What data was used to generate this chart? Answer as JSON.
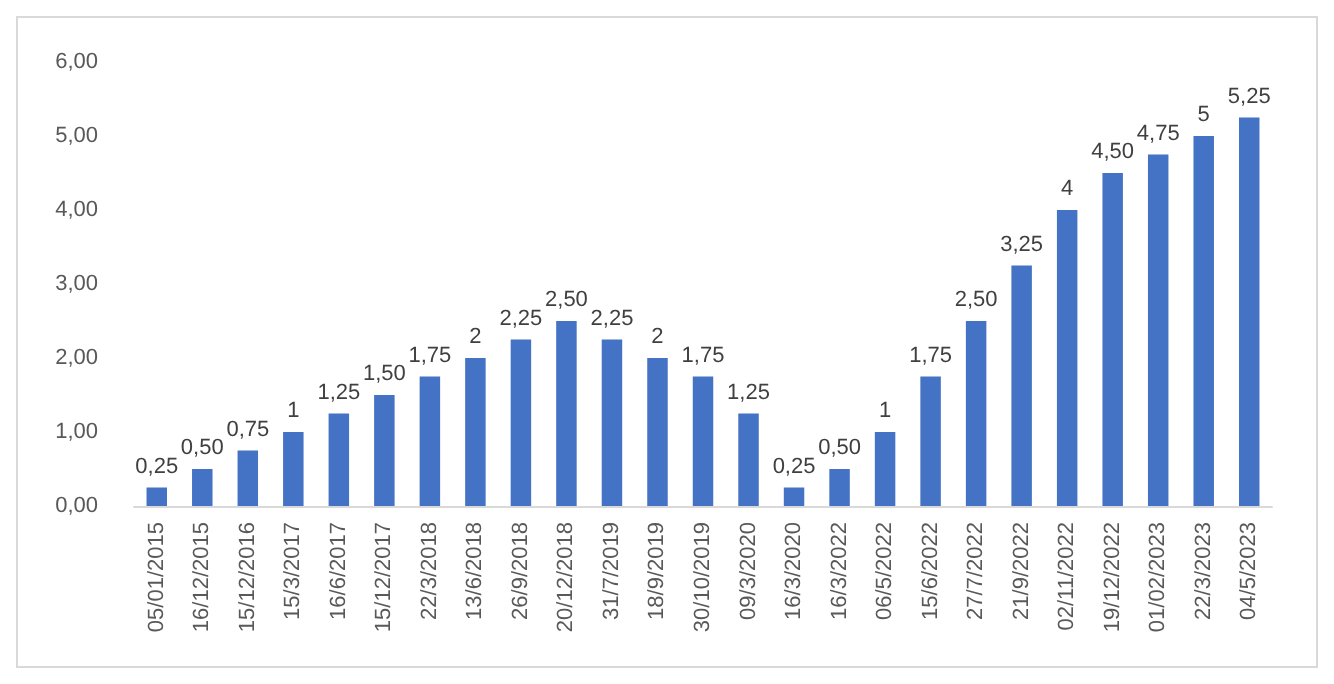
{
  "chart_data": {
    "type": "bar",
    "categories": [
      "05/01/2015",
      "16/12/2015",
      "15/12/2016",
      "15/3/2017",
      "16/6/2017",
      "15/12/2017",
      "22/3/2018",
      "13/6/2018",
      "26/9/2018",
      "20/12/2018",
      "31/7/2019",
      "18/9/2019",
      "30/10/2019",
      "09/3/2020",
      "16/3/2020",
      "16/3/2022",
      "06/5/2022",
      "15/6/2022",
      "27/7/2022",
      "21/9/2022",
      "02/11/2022",
      "19/12/2022",
      "01/02/2023",
      "22/3/2023",
      "04/5/2023"
    ],
    "values": [
      0.25,
      0.5,
      0.75,
      1,
      1.25,
      1.5,
      1.75,
      2,
      2.25,
      2.5,
      2.25,
      2,
      1.75,
      1.25,
      0.25,
      0.5,
      1,
      1.75,
      2.5,
      3.25,
      4,
      4.5,
      4.75,
      5,
      5.25
    ],
    "value_labels": [
      "0,25",
      "0,50",
      "0,75",
      "1",
      "1,25",
      "1,50",
      "1,75",
      "2",
      "2,25",
      "2,50",
      "2,25",
      "2",
      "1,75",
      "1,25",
      "0,25",
      "0,50",
      "1",
      "1,75",
      "2,50",
      "3,25",
      "4",
      "4,50",
      "4,75",
      "5",
      "5,25"
    ],
    "color": "#4472c4",
    "ylim": [
      0,
      6
    ],
    "yticks": [
      {
        "value": 0,
        "label": "0,00"
      },
      {
        "value": 1,
        "label": "1,00"
      },
      {
        "value": 2,
        "label": "2,00"
      },
      {
        "value": 3,
        "label": "3,00"
      },
      {
        "value": 4,
        "label": "4,00"
      },
      {
        "value": 5,
        "label": "5,00"
      },
      {
        "value": 6,
        "label": "6,00"
      }
    ],
    "grid": false
  }
}
